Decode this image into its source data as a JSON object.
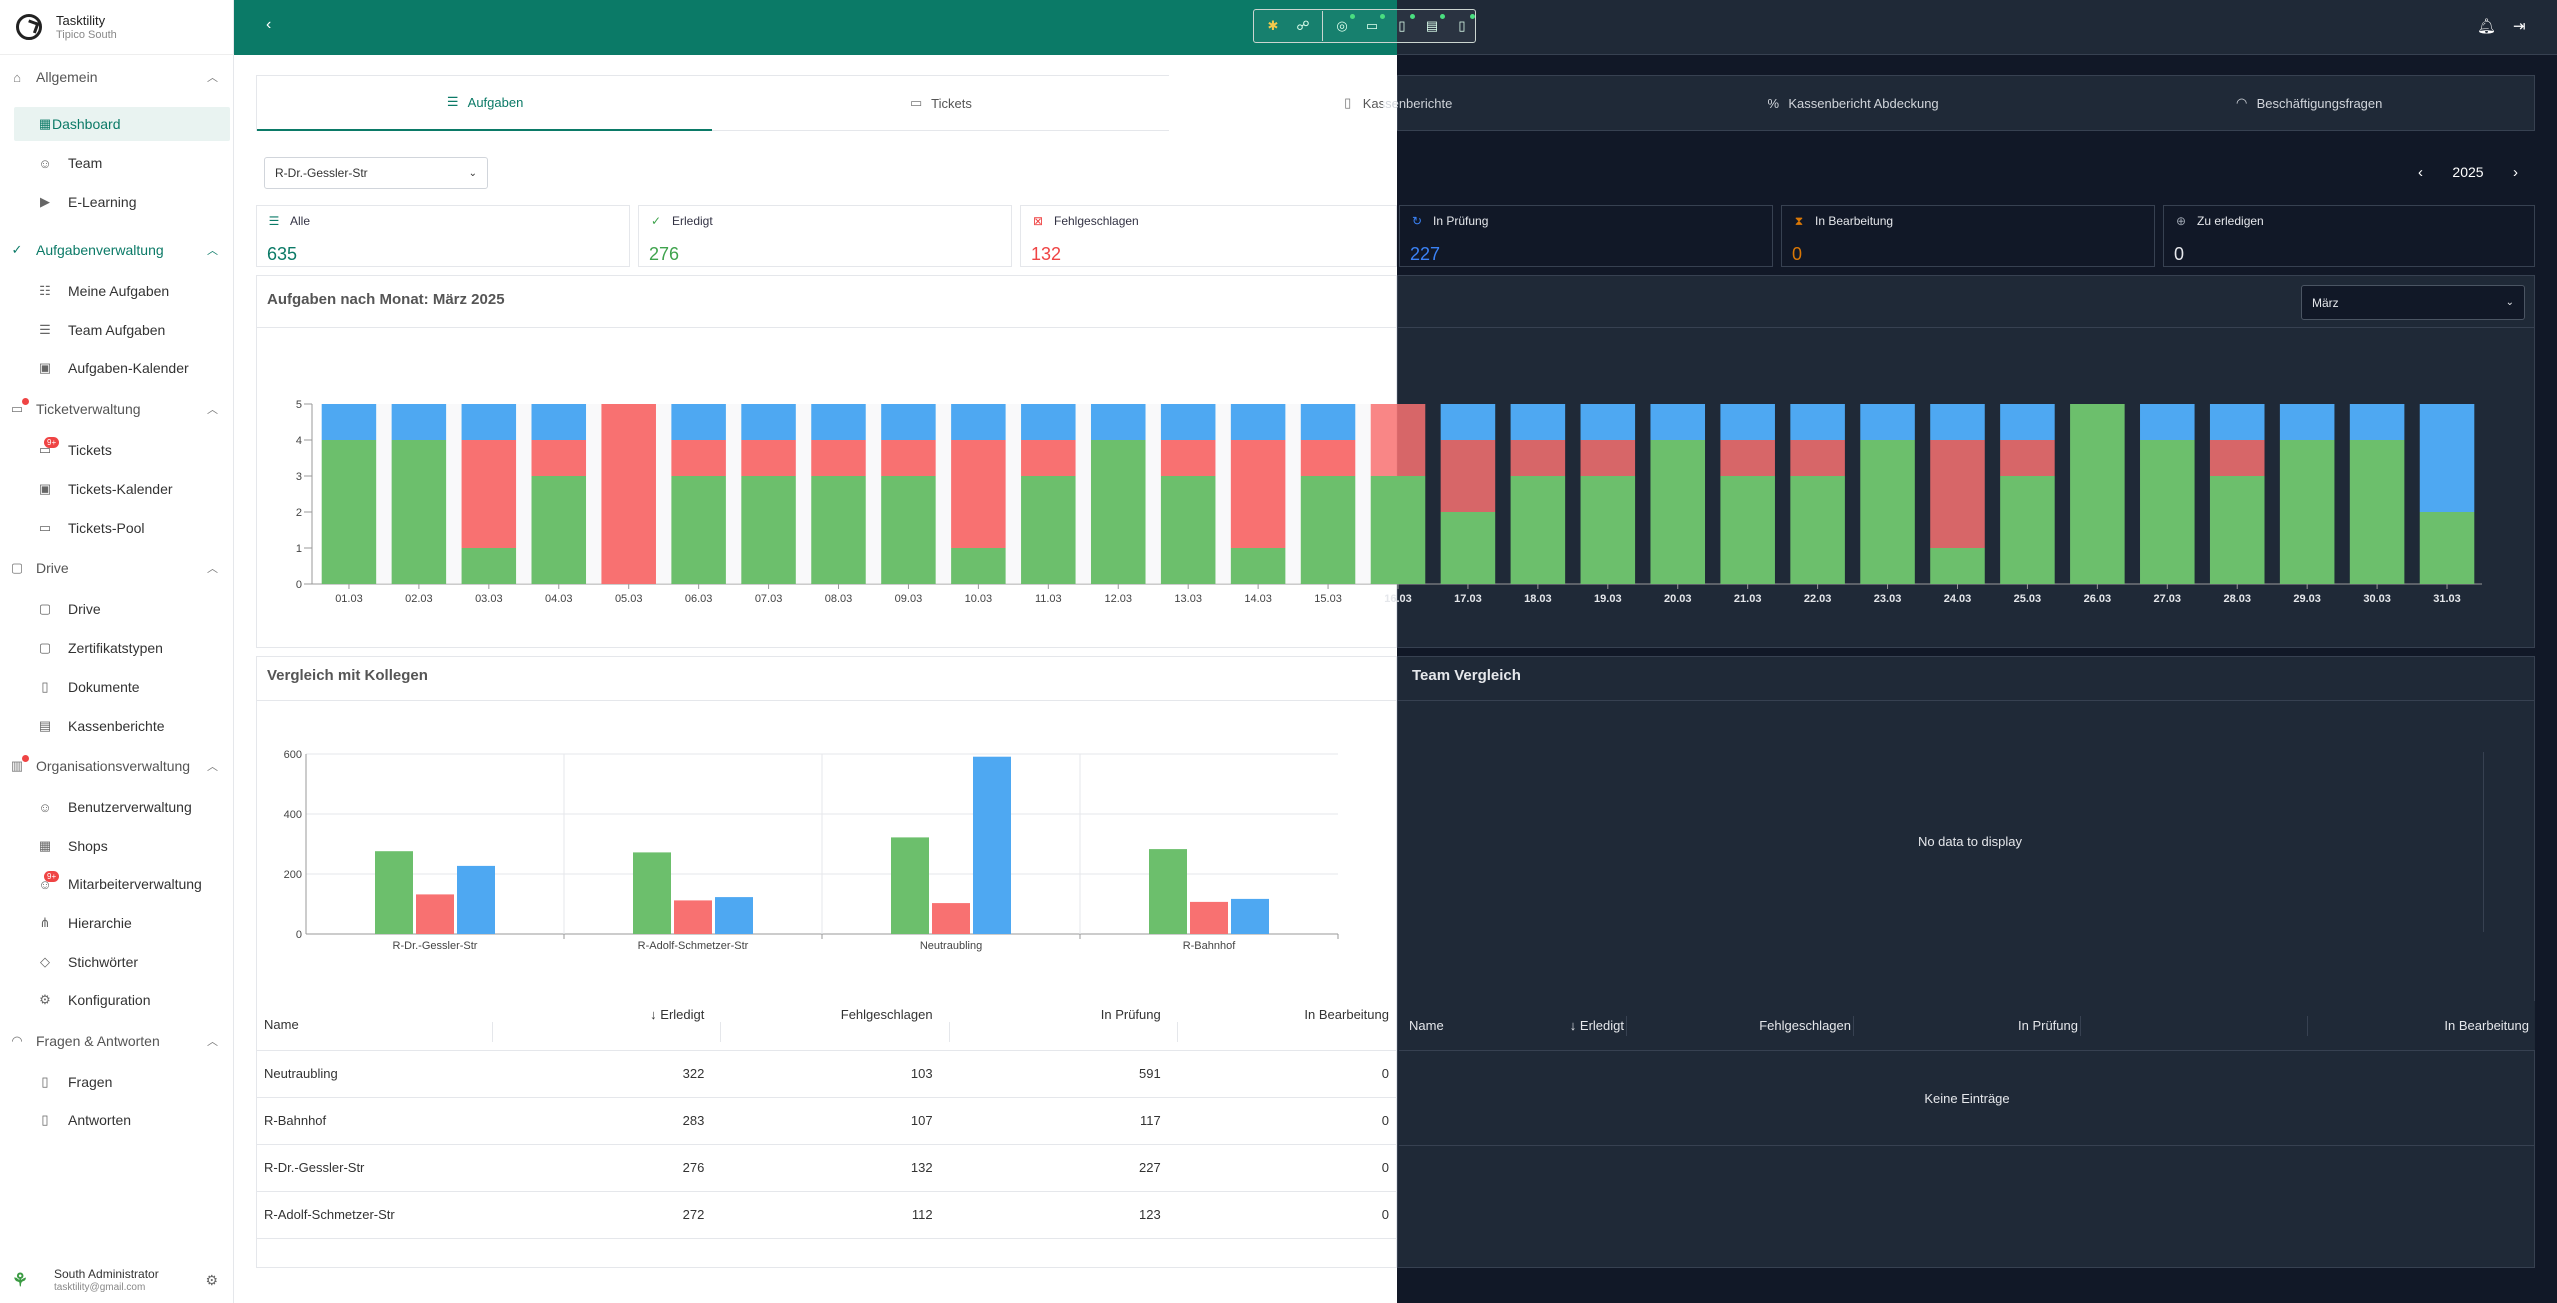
{
  "brand": {
    "name": "Tasktility",
    "sub": "Tipico South"
  },
  "sidebar": {
    "sections": [
      {
        "label": "Allgemein",
        "items": [
          "Dashboard",
          "Team",
          "E-Learning"
        ]
      },
      {
        "label": "Aufgabenverwaltung",
        "items": [
          "Meine Aufgaben",
          "Team Aufgaben",
          "Aufgaben-Kalender"
        ]
      },
      {
        "label": "Ticketverwaltung",
        "items": [
          "Tickets",
          "Tickets-Kalender",
          "Tickets-Pool"
        ]
      },
      {
        "label": "Drive",
        "items": [
          "Drive",
          "Zertifikatstypen",
          "Dokumente",
          "Kassenberichte"
        ]
      },
      {
        "label": "Organisationsverwaltung",
        "items": [
          "Benutzerverwaltung",
          "Shops",
          "Mitarbeiterverwaltung",
          "Hierarchie",
          "Stichwörter",
          "Konfiguration"
        ]
      },
      {
        "label": "Fragen & Antworten",
        "items": [
          "Fragen",
          "Antworten"
        ]
      }
    ],
    "badge": "9+"
  },
  "user": {
    "name": "South Administrator",
    "email": "tasktility@gmail.com"
  },
  "tabs": [
    "Aufgaben",
    "Tickets",
    "Kassenberichte",
    "Kassenbericht Abdeckung",
    "Beschäftigungsfragen"
  ],
  "filter": {
    "shop": "R-Dr.-Gessler-Str",
    "year": "2025",
    "month": "März"
  },
  "stats": [
    {
      "label": "Alle",
      "value": "635",
      "color": "#0b7a67"
    },
    {
      "label": "Erledigt",
      "value": "276",
      "color": "#3fa34d"
    },
    {
      "label": "Fehlgeschlagen",
      "value": "132",
      "color": "#ef4444"
    },
    {
      "label": "In Prüfung",
      "value": "227",
      "color": "#3b82f6"
    },
    {
      "label": "In Bearbeitung",
      "value": "0",
      "color": "#d97706"
    },
    {
      "label": "Zu erledigen",
      "value": "0",
      "color": "#e5e7eb"
    }
  ],
  "monthly": {
    "title": "Aufgaben nach Monat: März 2025",
    "chart_data": {
      "type": "bar",
      "stacked": true,
      "categories": [
        "01.03",
        "02.03",
        "03.03",
        "04.03",
        "05.03",
        "06.03",
        "07.03",
        "08.03",
        "09.03",
        "10.03",
        "11.03",
        "12.03",
        "13.03",
        "14.03",
        "15.03",
        "16.03",
        "17.03",
        "18.03",
        "19.03",
        "20.03",
        "21.03",
        "22.03",
        "23.03",
        "24.03",
        "25.03",
        "26.03",
        "27.03",
        "28.03",
        "29.03",
        "30.03",
        "31.03"
      ],
      "series": [
        {
          "color": "#6cbf6c",
          "values": [
            4,
            4,
            1,
            3,
            0,
            3,
            3,
            3,
            3,
            1,
            3,
            4,
            3,
            1,
            3,
            3,
            2,
            3,
            3,
            4,
            3,
            3,
            4,
            1,
            3,
            5,
            4,
            3,
            4,
            4,
            2
          ]
        },
        {
          "color": "#f87171",
          "values": [
            0,
            0,
            3,
            1,
            5,
            1,
            1,
            1,
            1,
            3,
            1,
            0,
            1,
            3,
            1,
            2,
            2,
            1,
            1,
            0,
            1,
            1,
            0,
            3,
            1,
            0,
            0,
            1,
            0,
            0,
            0
          ]
        },
        {
          "color": "#4ea8f2",
          "values": [
            1,
            1,
            1,
            1,
            0,
            1,
            1,
            1,
            1,
            1,
            1,
            1,
            1,
            1,
            1,
            0,
            1,
            1,
            1,
            1,
            1,
            1,
            1,
            1,
            1,
            0,
            1,
            1,
            1,
            1,
            3
          ]
        }
      ],
      "ylim": [
        0,
        5
      ],
      "yticks": [
        "0",
        "1",
        "2",
        "3",
        "4",
        "5"
      ]
    }
  },
  "compare": {
    "title": "Vergleich mit Kollegen",
    "chart_data": {
      "type": "bar",
      "categories": [
        "R-Dr.-Gessler-Str",
        "R-Adolf-Schmetzer-Str",
        "Neutraubling",
        "R-Bahnhof"
      ],
      "series": [
        {
          "color": "#6cbf6c",
          "values": [
            276,
            272,
            322,
            283
          ]
        },
        {
          "color": "#f87171",
          "values": [
            132,
            112,
            103,
            107
          ]
        },
        {
          "color": "#4ea8f2",
          "values": [
            227,
            123,
            591,
            117
          ]
        }
      ],
      "ylim": [
        0,
        600
      ],
      "yticks": [
        "0",
        "200",
        "400",
        "600"
      ]
    },
    "columns": [
      "Name",
      "Erledigt",
      "Fehlgeschlagen",
      "In Prüfung",
      "In Bearbeitung"
    ],
    "rows": [
      [
        "Neutraubling",
        "322",
        "103",
        "591",
        "0"
      ],
      [
        "R-Bahnhof",
        "283",
        "107",
        "117",
        "0"
      ],
      [
        "R-Dr.-Gessler-Str",
        "276",
        "132",
        "227",
        "0"
      ],
      [
        "R-Adolf-Schmetzer-Str",
        "272",
        "112",
        "123",
        "0"
      ]
    ]
  },
  "team": {
    "title": "Team Vergleich",
    "no_data": "No data to display",
    "columns": [
      "Name",
      "Erledigt",
      "Fehlgeschlagen",
      "In Prüfung",
      "In Bearbeitung"
    ],
    "empty": "Keine Einträge"
  }
}
